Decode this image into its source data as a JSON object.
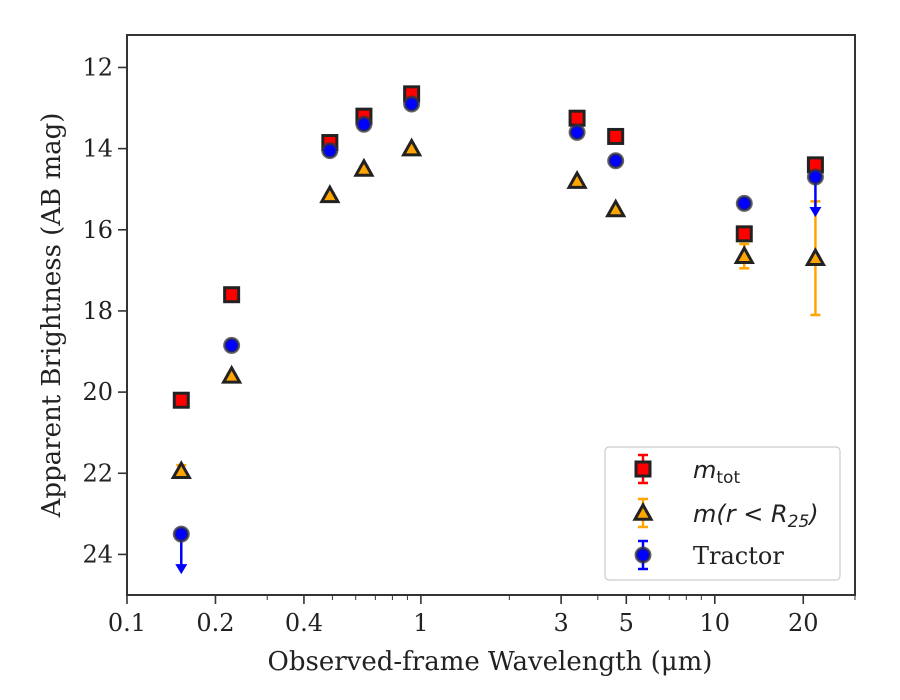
{
  "chart_data": {
    "type": "scatter",
    "xlabel": "Observed-frame Wavelength (μm)",
    "ylabel": "Apparent Brightness (AB mag)",
    "xscale": "log",
    "xlim": [
      0.1,
      30
    ],
    "ylim": [
      25,
      11.2
    ],
    "y_inverted": true,
    "x_ticks": [
      0.1,
      0.2,
      0.4,
      1,
      3,
      5,
      10,
      20
    ],
    "x_tick_labels": [
      "0.1",
      "0.2",
      "0.4",
      "1",
      "3",
      "5",
      "10",
      "20"
    ],
    "y_ticks": [
      12,
      14,
      16,
      18,
      20,
      22,
      24
    ],
    "y_tick_labels": [
      "12",
      "14",
      "16",
      "18",
      "20",
      "22",
      "24"
    ],
    "grid": false,
    "legend_position": "bottom-right",
    "series": [
      {
        "name": "m_tot",
        "legend_main": "m",
        "legend_sub": "tot",
        "marker": "square",
        "color": "#ff0000",
        "edge": "#222222",
        "errcolor": "#ff0000",
        "x": [
          0.153,
          0.227,
          0.49,
          0.64,
          0.93,
          3.4,
          4.6,
          12.6,
          22
        ],
        "y": [
          20.2,
          17.6,
          13.85,
          13.2,
          12.65,
          13.25,
          13.7,
          16.1,
          14.4
        ],
        "yerr": [
          0.05,
          0.05,
          0.05,
          0.05,
          0.05,
          0.05,
          0.05,
          0.1,
          0.1
        ]
      },
      {
        "name": "m(r < R_25)",
        "legend_main": "m(r < R",
        "legend_sub": "25",
        "legend_end": ")",
        "marker": "triangle",
        "color": "#ffa500",
        "edge": "#222222",
        "errcolor": "#ffa500",
        "x": [
          0.153,
          0.227,
          0.49,
          0.64,
          0.93,
          3.4,
          4.6,
          12.6,
          22
        ],
        "y": [
          21.95,
          19.6,
          15.15,
          14.5,
          14.0,
          14.8,
          15.5,
          16.65,
          16.7
        ],
        "yerr": [
          0.15,
          0.05,
          0.05,
          0.05,
          0.05,
          0.05,
          0.05,
          0.3,
          1.4
        ]
      },
      {
        "name": "Tractor",
        "marker": "circle",
        "color": "#0000ff",
        "edge": "#333333",
        "errcolor": "#0000ff",
        "x": [
          0.153,
          0.227,
          0.49,
          0.64,
          0.93,
          3.4,
          4.6,
          12.6,
          22
        ],
        "y": [
          23.5,
          18.85,
          14.05,
          13.4,
          12.9,
          13.6,
          14.3,
          15.35,
          14.7
        ],
        "yerr": [
          0.05,
          0.05,
          0.05,
          0.05,
          0.05,
          0.05,
          0.05,
          0.05,
          0.05
        ],
        "upper_limits": [
          true,
          false,
          false,
          false,
          false,
          false,
          false,
          false,
          true
        ]
      }
    ]
  }
}
